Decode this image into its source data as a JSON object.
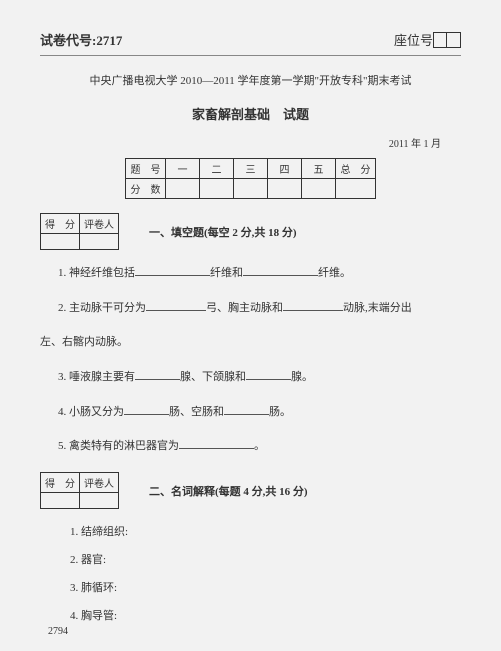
{
  "header": {
    "paper_code_label": "试卷代号:",
    "paper_code": "2717",
    "seat_label": "座位号"
  },
  "title": "中央广播电视大学 2010—2011 学年度第一学期\"开放专科\"期末考试",
  "subject": "家畜解剖基础　试题",
  "date": "2011 年 1 月",
  "score_table": {
    "row1": [
      "题　号",
      "一",
      "二",
      "三",
      "四",
      "五",
      "总　分"
    ],
    "row2_label": "分　数"
  },
  "marker": {
    "c1": "得　分",
    "c2": "评卷人"
  },
  "section1": {
    "title": "一、填空题(每空 2 分,共 18 分)"
  },
  "q1": {
    "prefix": "1. 神经纤维包括",
    "mid": "纤维和",
    "suffix": "纤维。"
  },
  "q2": {
    "prefix": "2. 主动脉干可分为",
    "mid1": "弓、胸主动脉和",
    "suffix": "动脉,末端分出"
  },
  "q2b": "左、右髂内动脉。",
  "q3": {
    "prefix": "3. 唾液腺主要有",
    "mid1": "腺、下颌腺和",
    "suffix": "腺。"
  },
  "q4": {
    "prefix": "4. 小肠又分为",
    "mid1": "肠、空肠和",
    "suffix": "肠。"
  },
  "q5": {
    "prefix": "5. 禽类特有的淋巴器官为",
    "suffix": "。"
  },
  "section2": {
    "title": "二、名词解释(每题 4 分,共 16 分)"
  },
  "q2_1": "1. 结缔组织:",
  "q2_2": "2. 器官:",
  "q2_3": "3. 肺循环:",
  "q2_4": "4. 胸导管:",
  "footer": "2794"
}
